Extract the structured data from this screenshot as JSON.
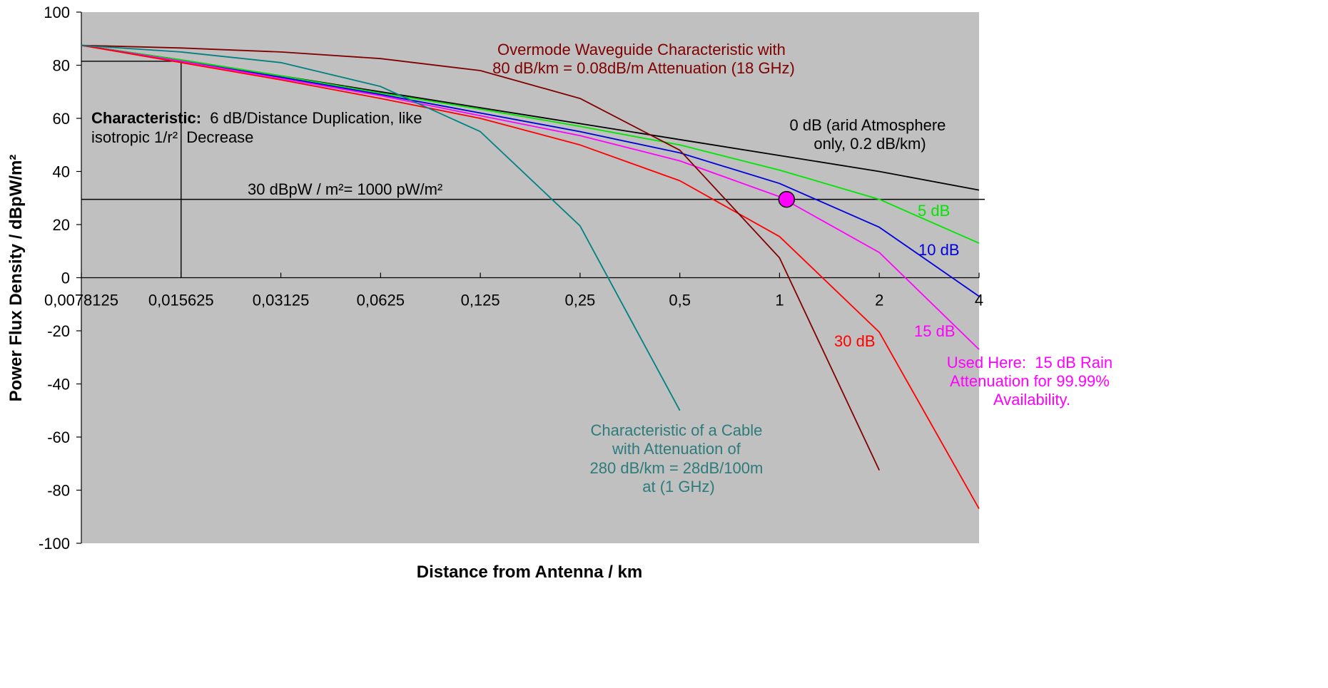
{
  "chart_data": {
    "type": "line",
    "xlabel": "Distance from Antenna / km",
    "ylabel": "Power Flux Density / dBpW/m²",
    "x_scale": "log2",
    "x_ticks": [
      "0,0078125",
      "0,015625",
      "0,03125",
      "0,0625",
      "0,125",
      "0,25",
      "0,5",
      "1",
      "2",
      "4"
    ],
    "x_values": [
      0.0078125,
      0.015625,
      0.03125,
      0.0625,
      0.125,
      0.25,
      0.5,
      1,
      2,
      4
    ],
    "ylim": [
      -100,
      100
    ],
    "y_ticks": [
      100,
      80,
      60,
      40,
      20,
      0,
      -20,
      -40,
      -60,
      -80,
      -100
    ],
    "grid": false,
    "background": "#c0c0c0",
    "series": [
      {
        "name": "0 dB (arid Atmosphere only, 0.2 dB/km)",
        "color": "#000000",
        "x": [
          0.0078125,
          0.015625,
          0.03125,
          0.0625,
          0.125,
          0.25,
          0.5,
          1,
          2,
          4
        ],
        "y": [
          87.5,
          82,
          76,
          70,
          64,
          58,
          52,
          46,
          40,
          33
        ]
      },
      {
        "name": "5 dB",
        "color": "#00e600",
        "x": [
          0.0078125,
          0.015625,
          0.03125,
          0.0625,
          0.125,
          0.25,
          0.5,
          1,
          2,
          4
        ],
        "y": [
          87.5,
          82,
          76,
          69.5,
          63.5,
          57,
          50,
          40.5,
          29.5,
          13
        ]
      },
      {
        "name": "10 dB",
        "color": "#0000dd",
        "x": [
          0.0078125,
          0.015625,
          0.03125,
          0.0625,
          0.125,
          0.25,
          0.5,
          1,
          2,
          4
        ],
        "y": [
          87.5,
          81.5,
          75.5,
          69,
          62,
          55,
          47,
          35.5,
          19,
          -7
        ]
      },
      {
        "name": "15 dB",
        "color": "#ff00ff",
        "x": [
          0.0078125,
          0.015625,
          0.03125,
          0.0625,
          0.125,
          0.25,
          0.5,
          1,
          2,
          4
        ],
        "y": [
          87.5,
          81.5,
          75,
          68.5,
          61,
          53.5,
          44,
          30.5,
          9.5,
          -27
        ]
      },
      {
        "name": "30 dB",
        "color": "#ff0000",
        "x": [
          0.0078125,
          0.015625,
          0.03125,
          0.0625,
          0.125,
          0.25,
          0.5,
          1,
          2,
          4
        ],
        "y": [
          87.5,
          81,
          74.5,
          67.5,
          60,
          50,
          36.5,
          15.5,
          -20.5,
          -87
        ]
      },
      {
        "name": "Overmode Waveguide",
        "color": "#800000",
        "x": [
          0.0078125,
          0.015625,
          0.03125,
          0.0625,
          0.125,
          0.25,
          0.5,
          1,
          2
        ],
        "y": [
          87.5,
          86.5,
          85,
          82.5,
          78,
          67.5,
          48,
          7.5,
          -72.5
        ]
      },
      {
        "name": "Cable",
        "color": "#008080",
        "x": [
          0.0078125,
          0.015625,
          0.03125,
          0.0625,
          0.125,
          0.25,
          0.5
        ],
        "y": [
          87.5,
          85,
          81,
          72,
          55,
          19.5,
          -50
        ]
      }
    ],
    "reference_lines": [
      {
        "label": "30 dBpW / m²= 1000 pW/m²",
        "y": 29.5
      },
      {
        "y": 81.5,
        "x_to": 0.015625
      },
      {
        "x": 0.015625,
        "y_from": 0,
        "y_to": 81.5
      }
    ],
    "marker": {
      "x": 1.05,
      "y": 29.5,
      "color": "#ff00ff"
    },
    "annotations": {
      "waveguide": [
        "Overmode Waveguide Characteristic with",
        "80 dB/km = 0.08dB/m Attenuation (18 GHz)"
      ],
      "characteristic_bold": "Characteristic:",
      "characteristic_rest": "  6 dB/Distance Duplication, like",
      "characteristic_line2": "isotropic 1/r²  Decrease",
      "zero_db": [
        "0 dB (arid Atmosphere",
        "only, 0.2 dB/km)"
      ],
      "five_db": "5 dB",
      "ten_db": "10 dB",
      "fifteen_db": "15 dB",
      "thirty_db": "30 dB",
      "used_here": [
        "Used Here:  15 dB Rain",
        "Attenuation for 99.99%",
        "Availability."
      ],
      "cable": [
        "Characteristic of a Cable",
        "with Attenuation of",
        "280 dB/km = 28dB/100m",
        "at (1 GHz)"
      ]
    }
  }
}
